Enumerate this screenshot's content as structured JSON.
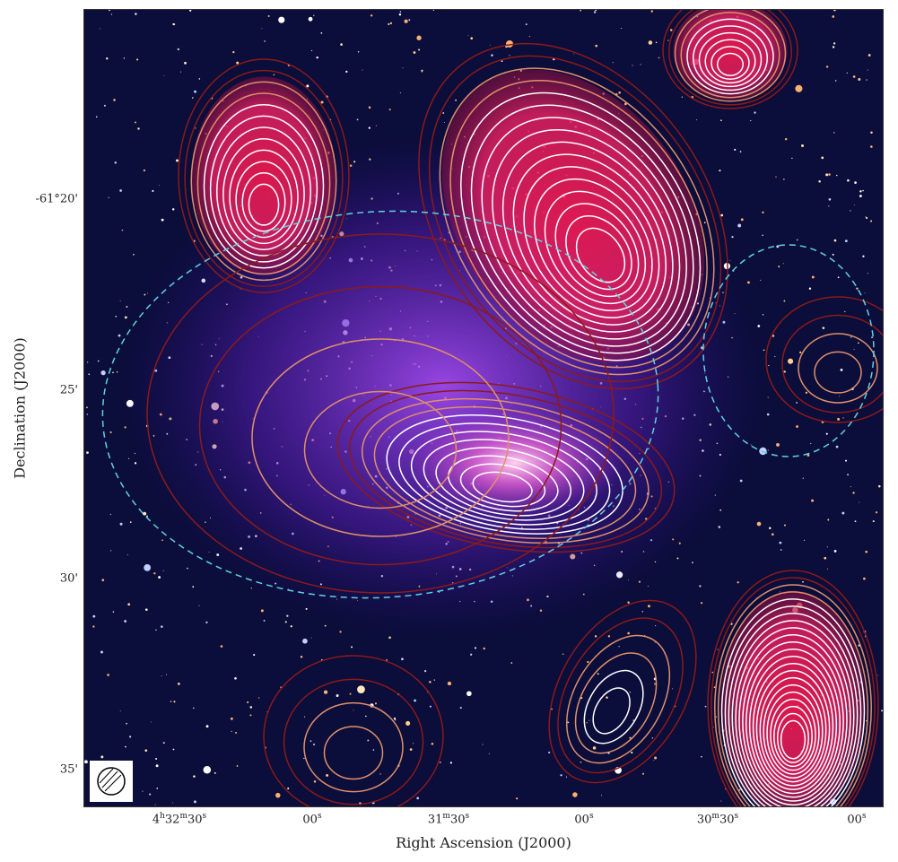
{
  "figure": {
    "xlabel": "Right Ascension (J2000)",
    "ylabel": "Declination (J2000)",
    "x_ticks": [
      {
        "h": "4",
        "hu": "h",
        "m": "32",
        "mu": "m",
        "s": "30",
        "su": "s"
      },
      {
        "h": "",
        "hu": "",
        "m": "",
        "mu": "",
        "s": "00",
        "su": "s"
      },
      {
        "h": "",
        "hu": "",
        "m": "31",
        "mu": "m",
        "s": "30",
        "su": "s"
      },
      {
        "h": "",
        "hu": "",
        "m": "",
        "mu": "",
        "s": "00",
        "su": "s"
      },
      {
        "h": "",
        "hu": "",
        "m": "30",
        "mu": "m",
        "s": "30",
        "su": "s"
      },
      {
        "h": "",
        "hu": "",
        "m": "",
        "mu": "",
        "s": "00",
        "su": "s"
      }
    ],
    "y_ticks": [
      "-61°20'",
      "25'",
      "30'",
      "35'"
    ],
    "colors": {
      "background": "#0b0d3a",
      "diffuse_emission": "#7a2ad0",
      "radio_peak": "#ff2a5a",
      "contour_outer": "#8b1a1a",
      "contour_mid": "#e0906a",
      "contour_inner": "#ffffff",
      "dashed_region": "#5fd3e0"
    },
    "beam_icon": "hatched-ellipse-icon"
  }
}
